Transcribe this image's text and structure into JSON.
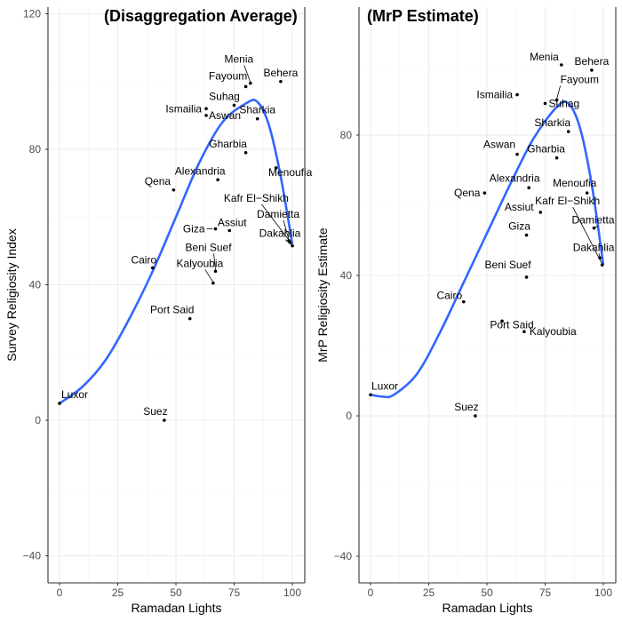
{
  "chart_data": [
    {
      "type": "scatter",
      "title": "(Disaggregation Average)",
      "xlabel": "Ramadan Lights",
      "ylabel": "Survey Religiosity Index",
      "xlim": [
        -5,
        105
      ],
      "ylim": [
        -48,
        120
      ],
      "xticks": [
        0,
        25,
        50,
        75,
        100
      ],
      "yticks": [
        -40,
        0,
        40,
        80,
        120
      ],
      "grid": true,
      "smooth_color": "#3366ff",
      "points": [
        {
          "label": "Luxor",
          "x": 0,
          "y": 5
        },
        {
          "label": "Suez",
          "x": 45,
          "y": 0
        },
        {
          "label": "Cairo",
          "x": 40,
          "y": 45
        },
        {
          "label": "Port Said",
          "x": 56,
          "y": 30
        },
        {
          "label": "Kalyoubia",
          "x": 66,
          "y": 40.5
        },
        {
          "label": "Beni Suef",
          "x": 67,
          "y": 44
        },
        {
          "label": "Giza",
          "x": 67,
          "y": 56.5
        },
        {
          "label": "Assiut",
          "x": 73,
          "y": 56
        },
        {
          "label": "Qena",
          "x": 49,
          "y": 68
        },
        {
          "label": "Alexandria",
          "x": 68,
          "y": 71
        },
        {
          "label": "Gharbia",
          "x": 80,
          "y": 79
        },
        {
          "label": "Menoufia",
          "x": 93,
          "y": 74.5
        },
        {
          "label": "Kafr El−Shikh",
          "x": 99,
          "y": 52.5
        },
        {
          "label": "Damietta",
          "x": 98.5,
          "y": 53
        },
        {
          "label": "Dakahlia",
          "x": 100,
          "y": 51.5
        },
        {
          "label": "Ismailia",
          "x": 63,
          "y": 92
        },
        {
          "label": "Aswan",
          "x": 63,
          "y": 90
        },
        {
          "label": "Suhag",
          "x": 75,
          "y": 93
        },
        {
          "label": "Sharkia",
          "x": 85,
          "y": 89
        },
        {
          "label": "Fayoum",
          "x": 80,
          "y": 98.5
        },
        {
          "label": "Menia",
          "x": 82,
          "y": 99.5
        },
        {
          "label": "Behera",
          "x": 95,
          "y": 100
        }
      ],
      "smooth": {
        "x": [
          0,
          10,
          20,
          30,
          40,
          50,
          60,
          70,
          80,
          85,
          90,
          95,
          100
        ],
        "y": [
          5,
          10,
          18,
          30,
          44,
          60,
          76,
          88,
          93.5,
          94,
          87,
          72,
          52
        ]
      }
    },
    {
      "type": "scatter",
      "title": "(MrP Estimate)",
      "xlabel": "Ramadan Lights",
      "ylabel": "MrP Religiosity Estimate",
      "xlim": [
        -5,
        105
      ],
      "ylim": [
        -48,
        115
      ],
      "xticks": [
        0,
        25,
        50,
        75,
        100
      ],
      "yticks": [
        -40,
        0,
        40,
        80
      ],
      "grid": true,
      "smooth_color": "#3366ff",
      "points": [
        {
          "label": "Luxor",
          "x": 0,
          "y": 6
        },
        {
          "label": "Suez",
          "x": 45,
          "y": 0
        },
        {
          "label": "Cairo",
          "x": 40,
          "y": 32.5
        },
        {
          "label": "Port Said",
          "x": 56.5,
          "y": 27
        },
        {
          "label": "Kalyoubia",
          "x": 66,
          "y": 24
        },
        {
          "label": "Beni Suef",
          "x": 67,
          "y": 39.5
        },
        {
          "label": "Giza",
          "x": 67,
          "y": 51.5
        },
        {
          "label": "Assiut",
          "x": 73,
          "y": 58
        },
        {
          "label": "Qena",
          "x": 49,
          "y": 63.5
        },
        {
          "label": "Alexandria",
          "x": 68,
          "y": 65
        },
        {
          "label": "Aswan",
          "x": 63,
          "y": 74.5
        },
        {
          "label": "Gharbia",
          "x": 80,
          "y": 73.5
        },
        {
          "label": "Sharkia",
          "x": 85,
          "y": 81
        },
        {
          "label": "Menoufia",
          "x": 93,
          "y": 63.5
        },
        {
          "label": "Kafr El−Shikh",
          "x": 99.5,
          "y": 43
        },
        {
          "label": "Damietta",
          "x": 96,
          "y": 53.5
        },
        {
          "label": "Dakahlia",
          "x": 98.5,
          "y": 45
        },
        {
          "label": "Ismailia",
          "x": 63,
          "y": 91.5
        },
        {
          "label": "Suhag",
          "x": 75,
          "y": 89
        },
        {
          "label": "Fayoum",
          "x": 80,
          "y": 90
        },
        {
          "label": "Menia",
          "x": 82,
          "y": 100
        },
        {
          "label": "Behera",
          "x": 95,
          "y": 98.5
        }
      ],
      "smooth": {
        "x": [
          0,
          5,
          10,
          20,
          30,
          40,
          50,
          60,
          70,
          80,
          85,
          90,
          95,
          100
        ],
        "y": [
          6,
          5.5,
          6,
          12,
          24,
          38,
          52,
          66,
          79,
          88,
          89,
          82,
          66,
          43
        ]
      }
    }
  ]
}
